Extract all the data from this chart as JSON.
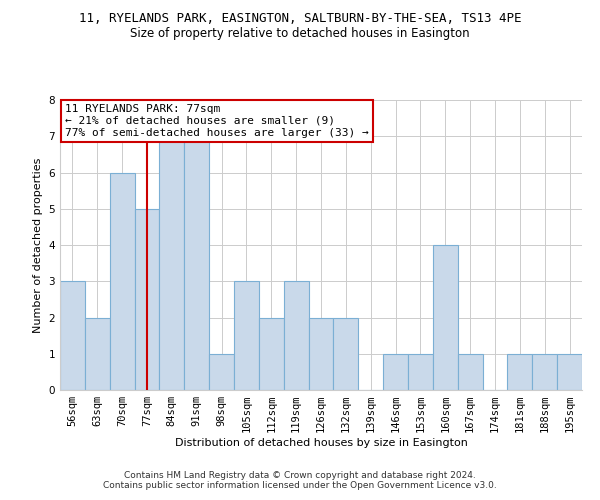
{
  "title": "11, RYELANDS PARK, EASINGTON, SALTBURN-BY-THE-SEA, TS13 4PE",
  "subtitle": "Size of property relative to detached houses in Easington",
  "xlabel": "Distribution of detached houses by size in Easington",
  "ylabel": "Number of detached properties",
  "categories": [
    "56sqm",
    "63sqm",
    "70sqm",
    "77sqm",
    "84sqm",
    "91sqm",
    "98sqm",
    "105sqm",
    "112sqm",
    "119sqm",
    "126sqm",
    "132sqm",
    "139sqm",
    "146sqm",
    "153sqm",
    "160sqm",
    "167sqm",
    "174sqm",
    "181sqm",
    "188sqm",
    "195sqm"
  ],
  "values": [
    3,
    2,
    6,
    5,
    7,
    7,
    1,
    3,
    2,
    3,
    2,
    2,
    0,
    1,
    1,
    4,
    1,
    0,
    1,
    1,
    1
  ],
  "bar_color": "#c9d9ea",
  "bar_edge_color": "#7bafd4",
  "highlight_index": 3,
  "highlight_line_color": "#cc0000",
  "ylim": [
    0,
    8
  ],
  "yticks": [
    0,
    1,
    2,
    3,
    4,
    5,
    6,
    7,
    8
  ],
  "annotation_box_text": "11 RYELANDS PARK: 77sqm\n← 21% of detached houses are smaller (9)\n77% of semi-detached houses are larger (33) →",
  "annotation_box_color": "#cc0000",
  "footnote": "Contains HM Land Registry data © Crown copyright and database right 2024.\nContains public sector information licensed under the Open Government Licence v3.0.",
  "background_color": "#ffffff",
  "grid_color": "#cccccc",
  "title_fontsize": 9,
  "subtitle_fontsize": 8.5,
  "xlabel_fontsize": 8,
  "ylabel_fontsize": 8,
  "tick_fontsize": 7.5,
  "annotation_fontsize": 8,
  "footnote_fontsize": 6.5
}
